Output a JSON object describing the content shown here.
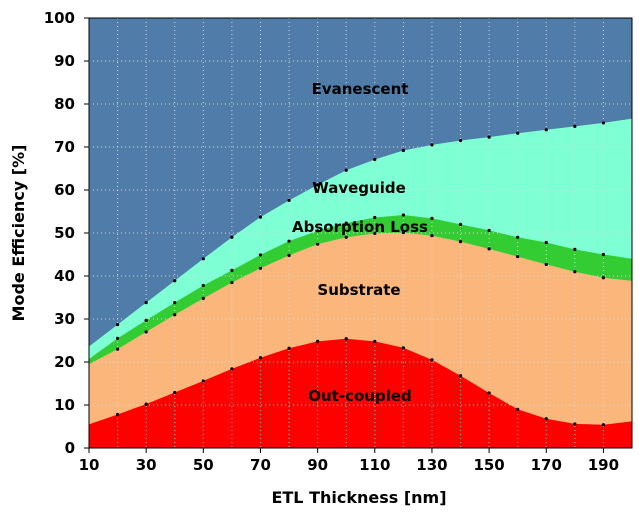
{
  "chart_data": {
    "type": "area",
    "stacked": true,
    "xlabel": "ETL Thickness [nm]",
    "ylabel": "Mode Efficiency [%]",
    "xlim": [
      10,
      200
    ],
    "ylim": [
      0,
      100
    ],
    "x_ticks": [
      "10",
      "30",
      "50",
      "70",
      "90",
      "110",
      "130",
      "150",
      "170",
      "190"
    ],
    "y_ticks": [
      "0",
      "10",
      "20",
      "30",
      "40",
      "50",
      "60",
      "70",
      "80",
      "90",
      "100"
    ],
    "grid": "dotted",
    "x": [
      10,
      20,
      30,
      40,
      50,
      60,
      70,
      80,
      90,
      100,
      110,
      120,
      130,
      140,
      150,
      160,
      170,
      180,
      190,
      200
    ],
    "boundaries": [
      {
        "name": "Out-coupled",
        "color": "#ff0000",
        "values": [
          5.5,
          7.8,
          10.2,
          12.9,
          15.6,
          18.4,
          21.0,
          23.2,
          24.8,
          25.4,
          24.8,
          23.3,
          20.5,
          16.8,
          12.8,
          9.0,
          6.8,
          5.6,
          5.4,
          6.2
        ]
      },
      {
        "name": "Substrate",
        "color": "#fbb67b",
        "values": [
          19.5,
          23.0,
          27.0,
          31.0,
          34.8,
          38.5,
          41.8,
          44.8,
          47.4,
          49.0,
          49.9,
          50.1,
          49.4,
          48.0,
          46.3,
          44.5,
          42.7,
          41.0,
          39.6,
          38.9
        ]
      },
      {
        "name": "Absorption Loss",
        "color": "#33cc33",
        "values": [
          20.7,
          25.5,
          29.7,
          33.8,
          37.8,
          41.3,
          44.9,
          48.1,
          50.5,
          52.3,
          53.6,
          54.2,
          53.4,
          52.0,
          50.6,
          49.0,
          47.8,
          46.2,
          45.0,
          44.0
        ]
      },
      {
        "name": "Waveguide",
        "color": "#7fffd4",
        "values": [
          23.6,
          28.7,
          33.8,
          38.9,
          44.0,
          49.0,
          53.7,
          57.6,
          61.2,
          64.6,
          67.1,
          69.2,
          70.5,
          71.5,
          72.3,
          73.2,
          74.0,
          74.8,
          75.6,
          76.6
        ]
      },
      {
        "name": "Evanescent",
        "color": "#4f7ca8",
        "values": [
          100,
          100,
          100,
          100,
          100,
          100,
          100,
          100,
          100,
          100,
          100,
          100,
          100,
          100,
          100,
          100,
          100,
          100,
          100,
          100
        ]
      }
    ],
    "labels": {
      "evanescent": "Evanescent",
      "waveguide": "Waveguide",
      "absorption": "Absorption Loss",
      "substrate": "Substrate",
      "outcoupled": "Out-coupled"
    }
  }
}
